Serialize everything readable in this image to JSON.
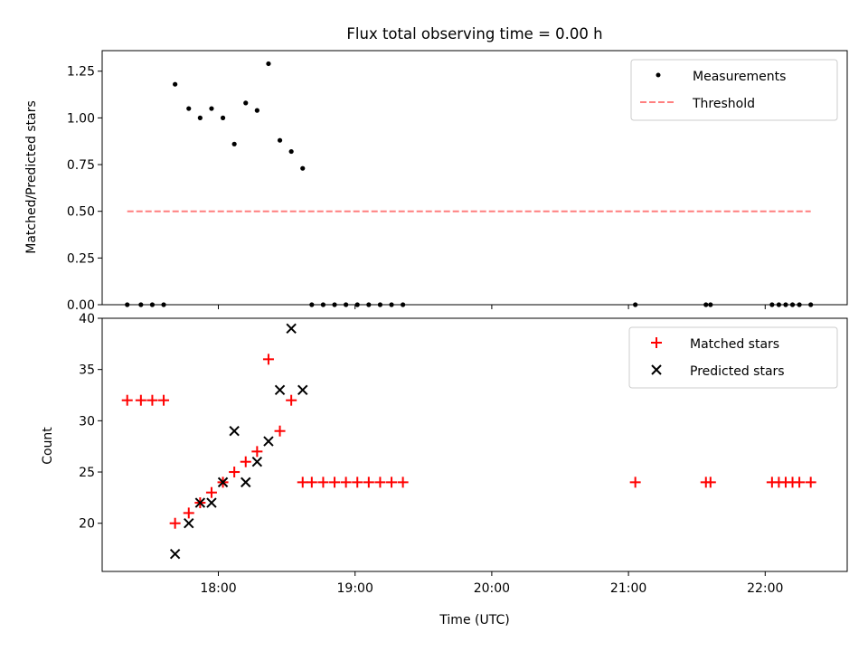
{
  "chart_data": [
    {
      "type": "scatter",
      "title": "Flux total observing time = 0.00 h",
      "xlabel": "",
      "ylabel": "Matched/Predicted stars",
      "ylim": [
        0,
        1.36
      ],
      "xlim": [
        "17:09",
        "22:36"
      ],
      "yticks": [
        0.0,
        0.25,
        0.5,
        0.75,
        1.0,
        1.25
      ],
      "yticklabels": [
        "0.00",
        "0.25",
        "0.50",
        "0.75",
        "1.00",
        "1.25"
      ],
      "xticks": [
        "18:00",
        "19:00",
        "20:00",
        "21:00",
        "22:00"
      ],
      "show_xticklabels": false,
      "grid": false,
      "legend_position": "top-right",
      "series": [
        {
          "name": "Measurements",
          "kind": "points",
          "color": "#000000",
          "x": [
            "17:20",
            "17:26",
            "17:31",
            "17:36",
            "17:41",
            "17:47",
            "17:52",
            "17:57",
            "18:02",
            "18:07",
            "18:12",
            "18:17",
            "18:22",
            "18:27",
            "18:32",
            "18:37",
            "18:41",
            "18:46",
            "18:51",
            "18:56",
            "19:01",
            "19:06",
            "19:11",
            "19:16",
            "19:21",
            "21:03",
            "21:34",
            "21:36",
            "22:03",
            "22:06",
            "22:09",
            "22:12",
            "22:15",
            "22:20"
          ],
          "y": [
            0,
            0,
            0,
            0,
            1.18,
            1.05,
            1.0,
            1.05,
            1.0,
            0.86,
            1.08,
            1.04,
            1.29,
            0.88,
            0.82,
            0.73,
            0,
            0,
            0,
            0,
            0,
            0,
            0,
            0,
            0,
            0,
            0,
            0,
            0,
            0,
            0,
            0,
            0,
            0
          ]
        },
        {
          "name": "Threshold",
          "kind": "dashed-line",
          "color": "#ff7f7f",
          "x": [
            "17:20",
            "22:20"
          ],
          "y": [
            0.5,
            0.5
          ]
        }
      ]
    },
    {
      "type": "scatter",
      "title": "",
      "xlabel": "Time (UTC)",
      "ylabel": "Count",
      "ylim": [
        15.3,
        40
      ],
      "xlim": [
        "17:09",
        "22:36"
      ],
      "yticks": [
        20,
        25,
        30,
        35,
        40
      ],
      "yticklabels": [
        "20",
        "25",
        "30",
        "35",
        "40"
      ],
      "xticks": [
        "18:00",
        "19:00",
        "20:00",
        "21:00",
        "22:00"
      ],
      "xticklabels": [
        "18:00",
        "19:00",
        "20:00",
        "21:00",
        "22:00"
      ],
      "grid": false,
      "legend_position": "top-right",
      "series": [
        {
          "name": "Matched stars",
          "marker": "plus",
          "color": "#ff0000",
          "x": [
            "17:20",
            "17:26",
            "17:31",
            "17:36",
            "17:41",
            "17:47",
            "17:52",
            "17:57",
            "18:02",
            "18:07",
            "18:12",
            "18:17",
            "18:22",
            "18:27",
            "18:32",
            "18:37",
            "18:41",
            "18:46",
            "18:51",
            "18:56",
            "19:01",
            "19:06",
            "19:11",
            "19:16",
            "19:21",
            "21:03",
            "21:34",
            "21:36",
            "22:03",
            "22:06",
            "22:09",
            "22:12",
            "22:15",
            "22:20"
          ],
          "y": [
            32,
            32,
            32,
            32,
            20,
            21,
            22,
            23,
            24,
            25,
            26,
            27,
            36,
            29,
            32,
            24,
            24,
            24,
            24,
            24,
            24,
            24,
            24,
            24,
            24,
            24,
            24,
            24,
            24,
            24,
            24,
            24,
            24,
            24
          ]
        },
        {
          "name": "Predicted stars",
          "marker": "x",
          "color": "#000000",
          "x": [
            "17:41",
            "17:47",
            "17:52",
            "17:57",
            "18:02",
            "18:07",
            "18:12",
            "18:17",
            "18:22",
            "18:27",
            "18:32",
            "18:37"
          ],
          "y": [
            17,
            20,
            22,
            22,
            24,
            29,
            24,
            26,
            28,
            33,
            39,
            33
          ]
        }
      ]
    }
  ]
}
